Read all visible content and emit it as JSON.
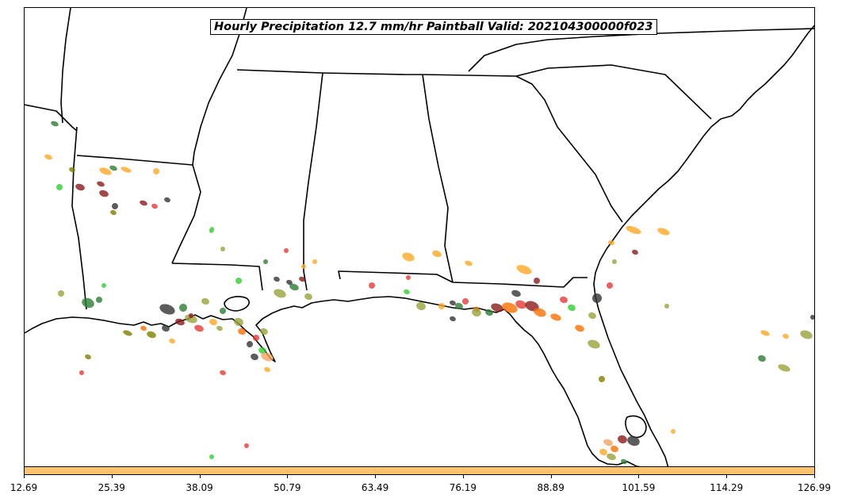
{
  "title": "Hourly Precipitation 12.7 mm/hr Paintball Valid: 202104300000f023",
  "colorbar": {
    "color": "#ffc36b",
    "ticks": [
      "12.69",
      "25.39",
      "38.09",
      "50.79",
      "63.49",
      "76.19",
      "88.89",
      "101.59",
      "114.29",
      "126.99"
    ]
  },
  "member_colors": [
    "#ffa726",
    "#ff6f00",
    "#e53935",
    "#8b1a1a",
    "#2e7d32",
    "#32cd32",
    "#808000",
    "#9aa23a",
    "#333333",
    "#f4a460"
  ]
}
